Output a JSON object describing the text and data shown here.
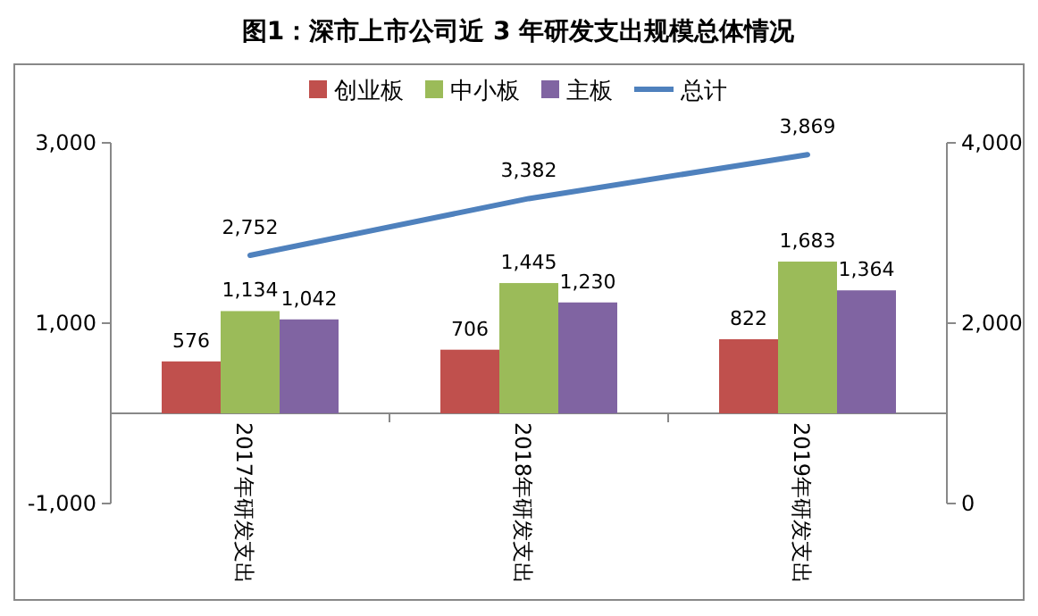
{
  "chart_data": {
    "type": "bar",
    "title": "图1：深市上市公司近 3 年研发支出规模总体情况",
    "categories": [
      "2017年研发支出",
      "2018年研发支出",
      "2019年研发支出"
    ],
    "series": [
      {
        "name": "创业板",
        "color": "#c0504d",
        "values": [
          576,
          706,
          822
        ],
        "value_labels": [
          "576",
          "706",
          "822"
        ]
      },
      {
        "name": "中小板",
        "color": "#9bbb59",
        "values": [
          1134,
          1445,
          1683
        ],
        "value_labels": [
          "1,134",
          "1,445",
          "1,683"
        ]
      },
      {
        "name": "主板",
        "color": "#8064a2",
        "values": [
          1042,
          1230,
          1364
        ],
        "value_labels": [
          "1,042",
          "1,230",
          "1,364"
        ]
      },
      {
        "name": "总计",
        "type": "line",
        "axis": "y2",
        "color": "#4f81bd",
        "values": [
          2752,
          3382,
          3869
        ],
        "value_labels": [
          "2,752",
          "3,382",
          "3,869"
        ]
      }
    ],
    "ylim": [
      -1000,
      3000
    ],
    "yticks": [
      {
        "value": -1000,
        "label": "-1,000"
      },
      {
        "value": 1000,
        "label": "1,000"
      },
      {
        "value": 3000,
        "label": "3,000"
      }
    ],
    "y2lim": [
      0,
      4000
    ],
    "y2ticks": [
      0,
      {
        "value": 2000,
        "label": "2,000"
      },
      {
        "value": 4000,
        "label": "4,000"
      }
    ],
    "legend": "top",
    "marker": "none"
  }
}
